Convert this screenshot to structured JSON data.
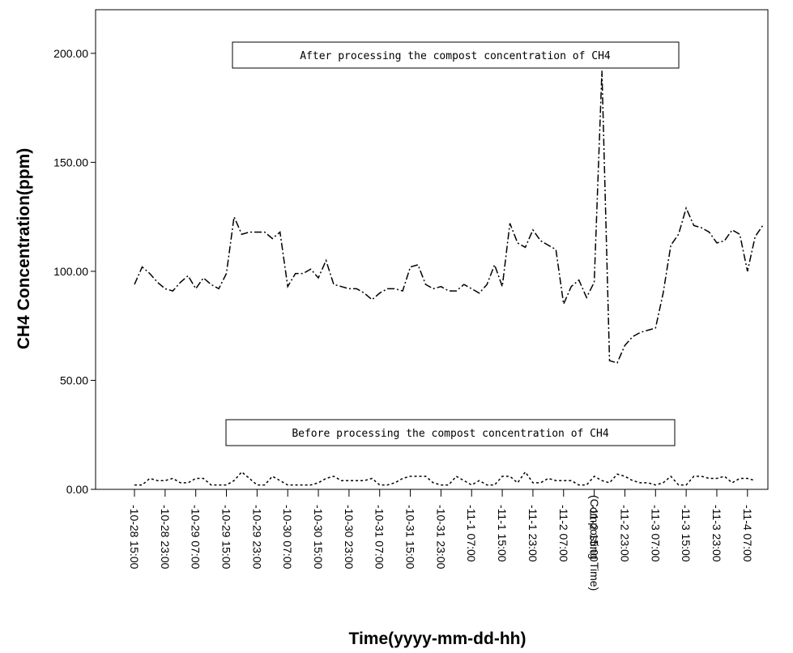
{
  "chart_data": {
    "type": "line",
    "xlabel": "Time(yyyy-mm-dd-hh)",
    "ylabel": "CH4 Concentration(ppm)",
    "ylim": [
      0,
      220
    ],
    "yticks": [
      "0.00",
      "50.00",
      "100.00",
      "150.00",
      "200.00"
    ],
    "xtick_labels": [
      "-10-28 15:00",
      "-10-28 23:00",
      "-10-29 07:00",
      "-10-29 15:00",
      "-10-29 23:00",
      "-10-30 07:00",
      "-10-30 15:00",
      "-10-30 23:00",
      "-10-31 07:00",
      "-10-31 15:00",
      "-10-31 23:00",
      "-11-1 07:00",
      "-11-1 15:00",
      "-11-1 23:00",
      "-11-2 07:00",
      "-11-2 15:00",
      "-11-2 23:00",
      "-11-3 07:00",
      "-11-3 15:00",
      "-11-3 23:00",
      "-11-4 07:00"
    ],
    "composting_label": "(Composting Time)",
    "annotations": {
      "after": "After processing the compost concentration of CH4",
      "before": "Before processing the compost concentration of CH4"
    },
    "x_start": "10-28 15:00",
    "x_step_hours": 2,
    "series": [
      {
        "style": "dash-dot",
        "values": [
          94,
          102,
          99,
          95,
          92,
          91,
          95,
          98,
          92,
          97,
          94,
          92,
          99,
          125,
          117,
          118,
          118,
          118,
          115,
          118,
          93,
          99,
          99,
          101,
          97,
          105,
          94,
          93,
          92,
          92,
          90,
          87,
          90,
          92,
          92,
          91,
          102,
          103,
          94,
          92,
          93,
          91,
          91,
          94,
          92,
          90,
          94,
          103,
          93,
          122,
          113,
          111,
          119,
          114,
          112,
          110,
          85,
          93,
          96,
          88,
          95,
          192,
          59,
          58,
          66,
          70,
          72,
          73,
          74,
          90,
          112,
          117,
          129,
          121,
          120,
          118,
          113,
          114,
          119,
          117,
          100,
          116,
          121
        ]
      },
      {
        "style": "dotted",
        "values": [
          2,
          2,
          5,
          4,
          4,
          5,
          3,
          3,
          5,
          5,
          2,
          2,
          2,
          4,
          8,
          5,
          2,
          2,
          6,
          4,
          2,
          2,
          2,
          2,
          3,
          5,
          6,
          4,
          4,
          4,
          4,
          5,
          2,
          2,
          3,
          5,
          6,
          6,
          6,
          3,
          2,
          2,
          6,
          4,
          2,
          4,
          2,
          2,
          6,
          6,
          3,
          8,
          3,
          3,
          5,
          4,
          4,
          4,
          2,
          2,
          6,
          4,
          3,
          7,
          6,
          4,
          3,
          3,
          2,
          3,
          6,
          2,
          2,
          6,
          6,
          5,
          5,
          6,
          3,
          5,
          5,
          4
        ]
      }
    ]
  }
}
